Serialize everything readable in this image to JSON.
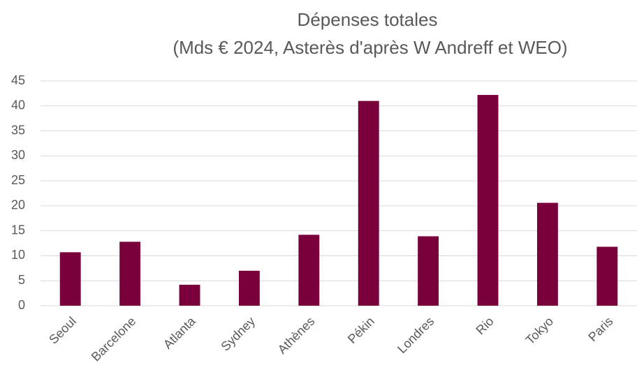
{
  "chart_data": {
    "type": "bar",
    "title": "Dépenses totales",
    "subtitle": "(Mds € 2024, Asterès d'après W Andreff et WEO)",
    "categories": [
      "Seoul",
      "Barcelone",
      "Atlanta",
      "Sydney",
      "Athènes",
      "Pékin",
      "Londres",
      "Rio",
      "Tokyo",
      "Paris"
    ],
    "values": [
      10.7,
      12.8,
      4.2,
      7.0,
      14.2,
      41.0,
      13.9,
      42.2,
      20.6,
      11.8
    ],
    "color": "#7a003c",
    "ylim": [
      0,
      45
    ],
    "yticks": [
      0,
      5,
      10,
      15,
      20,
      25,
      30,
      35,
      40,
      45
    ],
    "grid": true
  }
}
